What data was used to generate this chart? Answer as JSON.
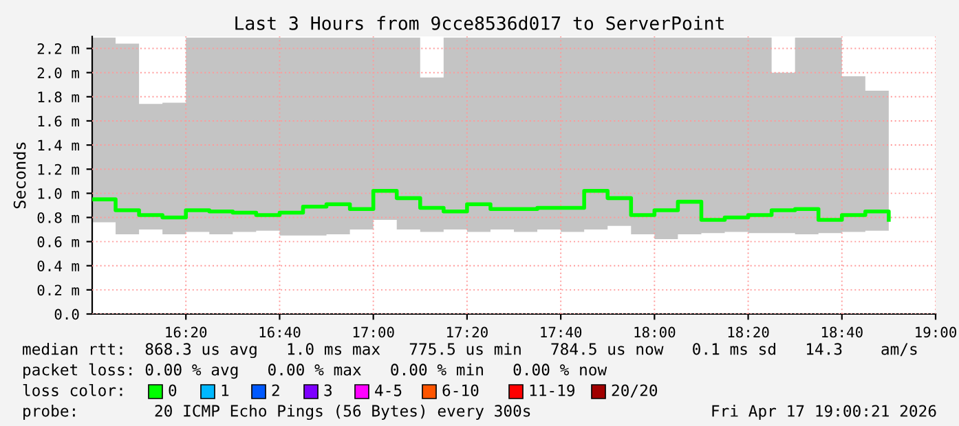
{
  "chart_data": {
    "type": "step",
    "title": "Last 3 Hours from 9cce8536d017 to ServerPoint",
    "ylabel": "Seconds",
    "x": [
      16.0,
      16.0833,
      16.1667,
      16.25,
      16.3333,
      16.4167,
      16.5,
      16.5833,
      16.6667,
      16.75,
      16.8333,
      16.9167,
      17.0,
      17.0833,
      17.1667,
      17.25,
      17.3333,
      17.4167,
      17.5,
      17.5833,
      17.6667,
      17.75,
      17.8333,
      17.9167,
      18.0,
      18.0833,
      18.1667,
      18.25,
      18.3333,
      18.4167,
      18.5,
      18.5833,
      18.6667,
      18.75,
      18.8333
    ],
    "series": [
      {
        "name": "0",
        "color": "#00ff00",
        "values": [
          0.95,
          0.86,
          0.82,
          0.8,
          0.86,
          0.85,
          0.84,
          0.82,
          0.84,
          0.89,
          0.91,
          0.87,
          1.02,
          0.96,
          0.88,
          0.85,
          0.91,
          0.87,
          0.87,
          0.88,
          0.88,
          1.02,
          0.96,
          0.82,
          0.86,
          0.93,
          0.78,
          0.8,
          0.82,
          0.86,
          0.87,
          0.78,
          0.82,
          0.85,
          0.78
        ],
        "lower": [
          0.76,
          0.66,
          0.7,
          0.66,
          0.68,
          0.66,
          0.68,
          0.69,
          0.65,
          0.65,
          0.66,
          0.7,
          0.78,
          0.7,
          0.68,
          0.7,
          0.68,
          0.7,
          0.68,
          0.7,
          0.68,
          0.7,
          0.73,
          0.66,
          0.62,
          0.66,
          0.67,
          0.68,
          0.67,
          0.67,
          0.66,
          0.67,
          0.68,
          0.69,
          0.69
        ],
        "upper": [
          2.29,
          2.24,
          1.74,
          1.75,
          2.29,
          2.29,
          2.29,
          2.29,
          2.29,
          2.29,
          2.29,
          2.29,
          2.29,
          2.29,
          1.96,
          2.29,
          2.29,
          2.29,
          2.29,
          2.29,
          2.29,
          2.29,
          2.29,
          2.29,
          2.29,
          2.29,
          2.29,
          2.29,
          2.29,
          2.0,
          2.29,
          2.29,
          1.97,
          1.85,
          2.17
        ]
      }
    ],
    "xlim": [
      16.0,
      19.0
    ],
    "xticks": [
      {
        "value": 16.3333,
        "label": "16:20"
      },
      {
        "value": 16.6667,
        "label": "16:40"
      },
      {
        "value": 17.0,
        "label": "17:00"
      },
      {
        "value": 17.3333,
        "label": "17:20"
      },
      {
        "value": 17.6667,
        "label": "17:40"
      },
      {
        "value": 18.0,
        "label": "18:00"
      },
      {
        "value": 18.3333,
        "label": "18:20"
      },
      {
        "value": 18.6667,
        "label": "18:40"
      },
      {
        "value": 19.0,
        "label": "19:00"
      }
    ],
    "ylim": [
      0,
      2.3
    ],
    "yticks": [
      {
        "value": 0,
        "label": "0.0"
      },
      {
        "value": 0.2,
        "label": "0.2 m"
      },
      {
        "value": 0.4,
        "label": "0.4 m"
      },
      {
        "value": 0.6,
        "label": "0.6 m"
      },
      {
        "value": 0.8,
        "label": "0.8 m"
      },
      {
        "value": 1.0,
        "label": "1.0 m"
      },
      {
        "value": 1.2,
        "label": "1.2 m"
      },
      {
        "value": 1.4,
        "label": "1.4 m"
      },
      {
        "value": 1.6,
        "label": "1.6 m"
      },
      {
        "value": 1.8,
        "label": "1.8 m"
      },
      {
        "value": 2.0,
        "label": "2.0 m"
      },
      {
        "value": 2.2,
        "label": "2.2 m"
      }
    ],
    "grid": true,
    "annotations": [
      "median rtt:  868.3 us avg   1.0 ms max   775.5 us min   784.5 us now   0.1 ms sd   14.3    am/s",
      "packet loss: 0.00 % avg   0.00 % max   0.00 % min   0.00 % now",
      "loss color:",
      "1",
      "2",
      "3",
      "4-5",
      "6-10",
      "11-19",
      "20/20",
      "probe:        20 ICMP Echo Pings (56 Bytes) every 300s",
      "Fri Apr 17 19:00:21 2026"
    ]
  }
}
